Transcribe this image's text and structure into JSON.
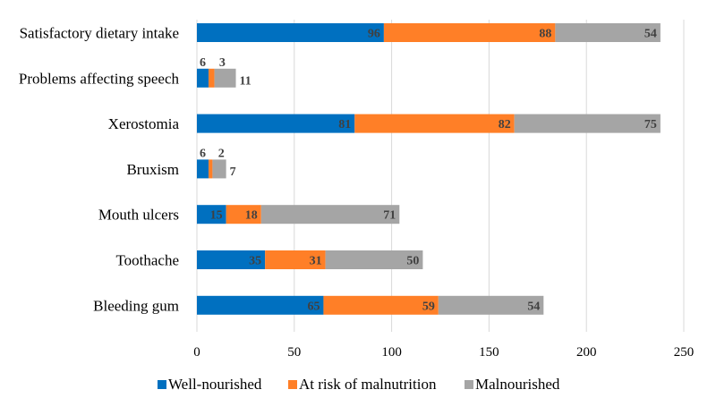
{
  "chart_data": {
    "type": "bar",
    "orientation": "horizontal",
    "stacked": true,
    "title": "",
    "xlabel": "",
    "ylabel": "",
    "xlim": [
      0,
      250
    ],
    "xticks": [
      0,
      50,
      100,
      150,
      200,
      250
    ],
    "grid": true,
    "legend_position": "bottom",
    "categories": [
      "Satisfactory dietary intake",
      "Problems affecting speech",
      "Xerostomia",
      "Bruxism",
      "Mouth ulcers",
      "Toothache",
      "Bleeding gum"
    ],
    "series": [
      {
        "name": "Well-nourished",
        "color": "#0070C0",
        "values": [
          96,
          6,
          81,
          6,
          15,
          35,
          65
        ]
      },
      {
        "name": "At risk of malnutrition",
        "color": "#FF7F27",
        "values": [
          88,
          3,
          82,
          2,
          18,
          31,
          59
        ]
      },
      {
        "name": "Malnourished",
        "color": "#A5A5A5",
        "values": [
          54,
          11,
          75,
          7,
          71,
          50,
          54
        ]
      }
    ]
  }
}
